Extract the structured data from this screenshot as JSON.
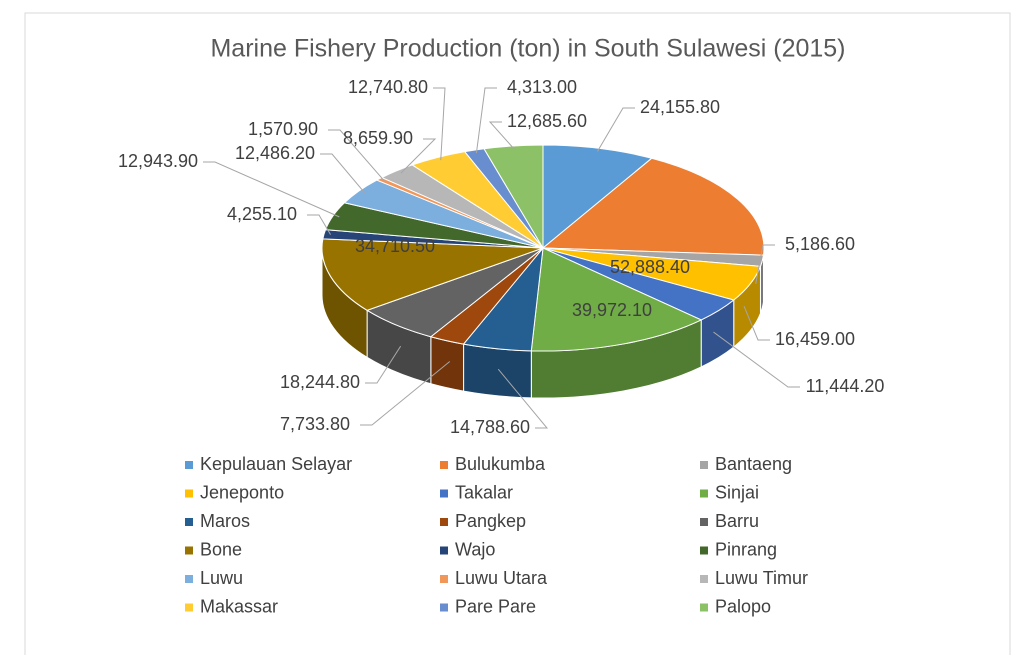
{
  "chart_data": {
    "type": "pie3d",
    "title": "Marine Fishery Production (ton) in South Sulawesi (2015)",
    "categories": [
      "Kepulauan Selayar",
      "Bulukumba",
      "Bantaeng",
      "Jeneponto",
      "Takalar",
      "Sinjai",
      "Maros",
      "Pangkep",
      "Barru",
      "Bone",
      "Wajo",
      "Pinrang",
      "Luwu",
      "Luwu Utara",
      "Luwu Timur",
      "Makassar",
      "Pare Pare",
      "Palopo"
    ],
    "values": [
      24155.8,
      52888.4,
      5186.6,
      16459.0,
      11444.2,
      39972.1,
      14788.6,
      7733.8,
      18244.8,
      34710.5,
      4255.1,
      12943.9,
      12486.2,
      1570.9,
      8659.9,
      12740.8,
      4313.0,
      12685.6
    ],
    "value_labels": [
      "24,155.80",
      "52,888.40",
      "5,186.60",
      "16,459.00",
      "11,444.20",
      "39,972.10",
      "14,788.60",
      "7,733.80",
      "18,244.80",
      "34,710.50",
      "4,255.10",
      "12,943.90",
      "12,486.20",
      "1,570.90",
      "8,659.90",
      "12,740.80",
      "4,313.00",
      "12,685.60"
    ],
    "colors": [
      "#5b9bd5",
      "#ed7d31",
      "#a5a5a5",
      "#ffc000",
      "#4472c4",
      "#70ad47",
      "#255e91",
      "#9e480e",
      "#636363",
      "#997300",
      "#264478",
      "#43682b",
      "#7cafdd",
      "#f1975a",
      "#b7b7b7",
      "#ffcd33",
      "#698ed0",
      "#8cc168"
    ],
    "legend": "bottom"
  }
}
